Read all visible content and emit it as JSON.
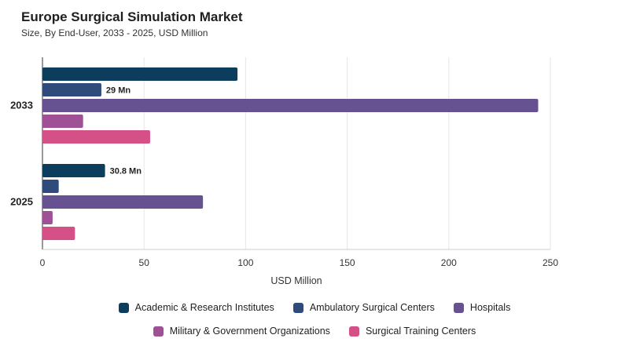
{
  "title": "Europe Surgical Simulation Market",
  "subtitle": "Size, By End-User, 2033 - 2025, USD Million",
  "chart_data": {
    "type": "bar",
    "orientation": "horizontal",
    "title": "Europe Surgical Simulation Market",
    "subtitle": "Size, By End-User, 2033 - 2025, USD Million",
    "xlabel": "USD Million",
    "ylabel": "",
    "xlim": [
      0,
      250
    ],
    "xticks": [
      0,
      50,
      100,
      150,
      200,
      250
    ],
    "categories": [
      "2033",
      "2025"
    ],
    "grid": true,
    "legend_position": "bottom",
    "series": [
      {
        "name": "Academic & Research Institutes",
        "color": "#0d3d5c",
        "values": [
          96,
          30.8
        ],
        "labels": [
          "",
          "30.8 Mn"
        ]
      },
      {
        "name": "Ambulatory Surgical Centers",
        "color": "#2f4b7c",
        "values": [
          29,
          8
        ],
        "labels": [
          "29 Mn",
          ""
        ]
      },
      {
        "name": "Hospitals",
        "color": "#665191",
        "values": [
          244,
          79
        ],
        "labels": [
          "",
          ""
        ]
      },
      {
        "name": "Military & Government Organizations",
        "color": "#a05195",
        "values": [
          20,
          5
        ],
        "labels": [
          "",
          ""
        ]
      },
      {
        "name": "Surgical Training Centers",
        "color": "#d45087",
        "values": [
          53,
          16
        ],
        "labels": [
          "",
          ""
        ]
      }
    ]
  }
}
